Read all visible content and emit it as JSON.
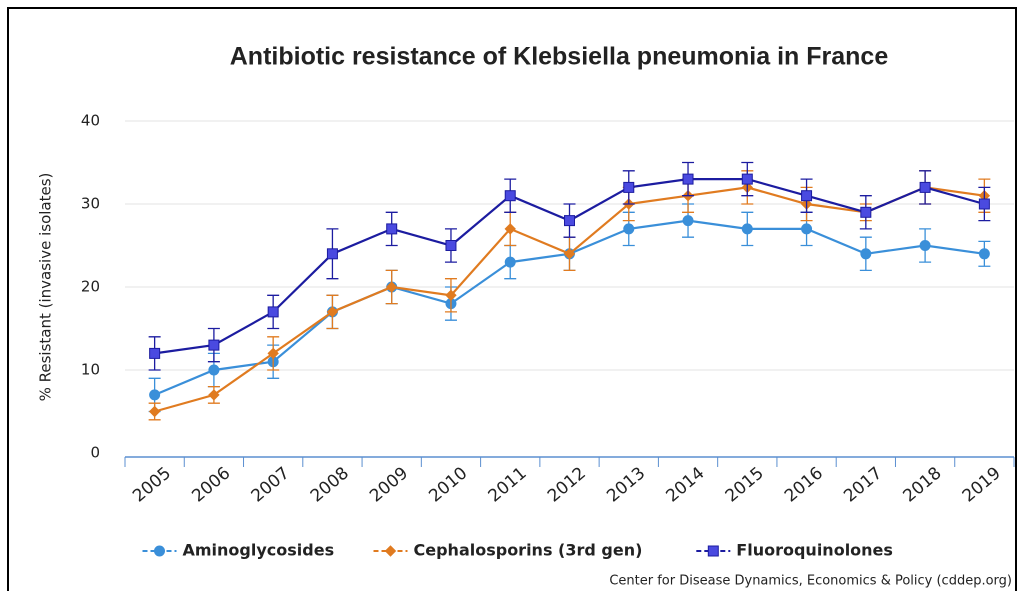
{
  "chart_data": {
    "type": "line",
    "title": "Antibiotic resistance of Klebsiella pneumonia in France",
    "y_label": "% Resistant (invasive isolates)",
    "source": "Center for Disease Dynamics, Economics & Policy (cddep.org)",
    "categories": [
      "2005",
      "2006",
      "2007",
      "2008",
      "2009",
      "2010",
      "2011",
      "2012",
      "2013",
      "2014",
      "2015",
      "2016",
      "2017",
      "2018",
      "2019"
    ],
    "ylim": [
      0,
      40
    ],
    "yticks": [
      0,
      10,
      20,
      30,
      40
    ],
    "grid": true,
    "legend": "bottom",
    "series": [
      {
        "name": "Aminoglycosides",
        "color": "#3a8fd9",
        "marker": "circle",
        "values": [
          7,
          10,
          11,
          17,
          20,
          18,
          23,
          24,
          27,
          28,
          27,
          27,
          24,
          25,
          24
        ],
        "errors": [
          2,
          2,
          2,
          2,
          2,
          2,
          2,
          2,
          2,
          2,
          2,
          2,
          2,
          2,
          1.5
        ]
      },
      {
        "name": "Cephalosporins (3rd gen)",
        "color": "#e07b20",
        "marker": "diamond",
        "values": [
          5,
          7,
          12,
          17,
          20,
          19,
          27,
          24,
          30,
          31,
          32,
          30,
          29,
          32,
          31
        ],
        "errors": [
          1,
          1,
          2,
          2,
          2,
          2,
          2,
          2,
          2,
          2,
          2,
          2,
          1,
          2,
          2
        ]
      },
      {
        "name": "Fluoroquinolones",
        "color": "#1c1ca0",
        "marker": "square",
        "values": [
          12,
          13,
          17,
          24,
          27,
          25,
          31,
          28,
          32,
          33,
          33,
          31,
          29,
          32,
          30
        ],
        "errors": [
          2,
          2,
          2,
          3,
          2,
          2,
          2,
          2,
          2,
          2,
          2,
          2,
          2,
          2,
          2
        ]
      }
    ]
  }
}
